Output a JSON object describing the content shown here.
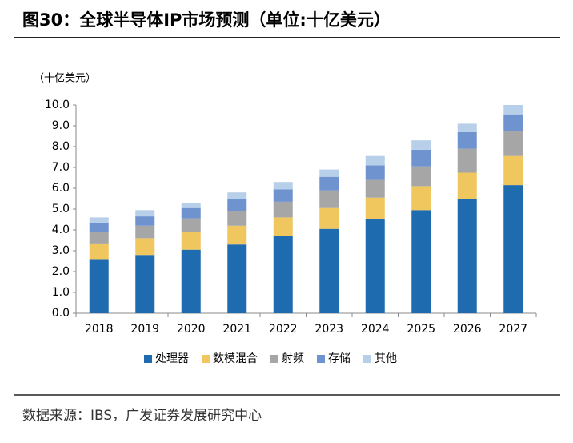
{
  "chart_data": {
    "type": "bar",
    "stacked": true,
    "title": "图30：全球半导体IP市场预测（单位:十亿美元）",
    "unit_label": "（十亿美元）",
    "source": "数据来源：IBS，广发证券发展研究中心",
    "categories": [
      "2018",
      "2019",
      "2020",
      "2021",
      "2022",
      "2023",
      "2024",
      "2025",
      "2026",
      "2027"
    ],
    "series": [
      {
        "name": "处理器",
        "color": "#1f6bb0",
        "values": [
          2.6,
          2.8,
          3.05,
          3.3,
          3.7,
          4.05,
          4.5,
          4.95,
          5.5,
          6.15
        ]
      },
      {
        "name": "数模混合",
        "color": "#f0c75e",
        "values": [
          0.75,
          0.8,
          0.85,
          0.9,
          0.9,
          1.0,
          1.05,
          1.15,
          1.25,
          1.4
        ]
      },
      {
        "name": "射频",
        "color": "#a6a6a6",
        "values": [
          0.55,
          0.6,
          0.65,
          0.7,
          0.75,
          0.85,
          0.85,
          0.95,
          1.15,
          1.2
        ]
      },
      {
        "name": "存储",
        "color": "#6f93cf",
        "values": [
          0.45,
          0.45,
          0.5,
          0.6,
          0.6,
          0.65,
          0.7,
          0.8,
          0.8,
          0.8
        ]
      },
      {
        "name": "其他",
        "color": "#b7cfe8",
        "values": [
          0.25,
          0.3,
          0.25,
          0.3,
          0.35,
          0.35,
          0.45,
          0.45,
          0.4,
          0.45
        ]
      }
    ],
    "ylim": [
      0,
      10
    ],
    "yticks": [
      {
        "value": 0,
        "label": "0.0"
      },
      {
        "value": 1,
        "label": "1.0"
      },
      {
        "value": 2,
        "label": "2.0"
      },
      {
        "value": 3,
        "label": "3.0"
      },
      {
        "value": 4,
        "label": "4.0"
      },
      {
        "value": 5,
        "label": "5.0"
      },
      {
        "value": 6,
        "label": "6.0"
      },
      {
        "value": 7,
        "label": "7.0"
      },
      {
        "value": 8,
        "label": "8.0"
      },
      {
        "value": 9,
        "label": "9.0"
      },
      {
        "value": 10,
        "label": "10.0"
      }
    ],
    "legend": "bottom"
  }
}
